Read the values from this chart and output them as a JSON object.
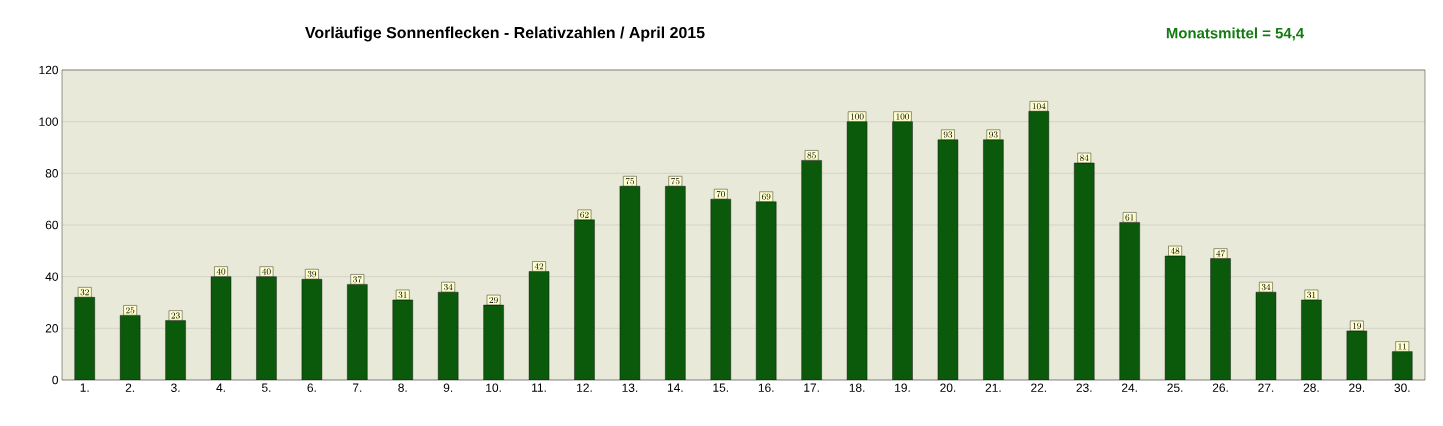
{
  "chart_data": {
    "type": "bar",
    "title": "Vorläufige Sonnenflecken - Relativzahlen  /  April 2015",
    "annotations": [
      "Monatsmittel = 54,4"
    ],
    "categories": [
      "1.",
      "2.",
      "3.",
      "4.",
      "5.",
      "6.",
      "7.",
      "8.",
      "9.",
      "10.",
      "11.",
      "12.",
      "13.",
      "14.",
      "15.",
      "16.",
      "17.",
      "18.",
      "19.",
      "20.",
      "21.",
      "22.",
      "23.",
      "24.",
      "25.",
      "26.",
      "27.",
      "28.",
      "29.",
      "30."
    ],
    "values": [
      32,
      25,
      23,
      40,
      40,
      39,
      37,
      31,
      34,
      29,
      42,
      62,
      75,
      75,
      70,
      69,
      85,
      100,
      100,
      93,
      93,
      104,
      84,
      61,
      48,
      47,
      34,
      31,
      19,
      11
    ],
    "color": "#0b5a0b",
    "ylim": [
      0,
      120
    ],
    "yticks": [
      0,
      20,
      40,
      60,
      80,
      100,
      120
    ],
    "grid": "y",
    "data_labels": true
  }
}
